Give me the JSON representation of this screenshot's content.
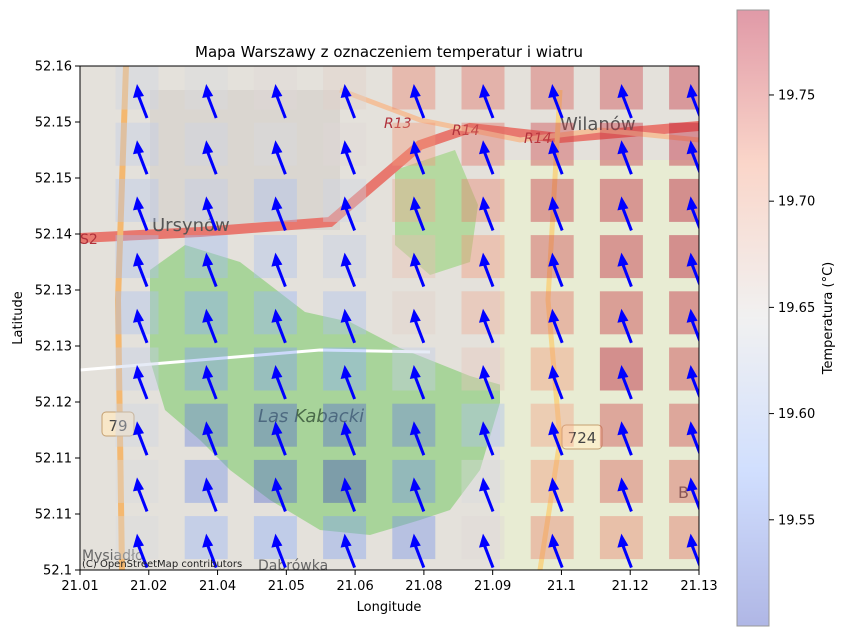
{
  "chart_data": {
    "type": "heatmap",
    "title": "Mapa Warszawy z oznaczeniem temperatur i wiatru",
    "xlabel": "Longitude",
    "ylabel": "Latitude",
    "x_ticks": [
      "21.01",
      "21.02",
      "21.04",
      "21.05",
      "21.06",
      "21.08",
      "21.09",
      "21.1",
      "21.12",
      "21.13"
    ],
    "y_ticks": [
      "52.16",
      "52.15",
      "52.15",
      "52.14",
      "52.13",
      "52.13",
      "52.12",
      "52.11",
      "52.11",
      "52.1"
    ],
    "xlim": [
      21.01,
      21.13
    ],
    "ylim": [
      52.1,
      52.16
    ],
    "colorbar": {
      "label": "Temperatura (°C)",
      "ticks": [
        "19.75",
        "19.70",
        "19.65",
        "19.60",
        "19.55"
      ],
      "range": [
        19.5,
        19.79
      ],
      "colormap": "coolwarm"
    },
    "grid": {
      "columns": 9,
      "rows": 9,
      "temperatures": [
        [
          19.63,
          19.64,
          19.65,
          19.66,
          19.73,
          19.74,
          19.75,
          19.76,
          19.77
        ],
        [
          19.62,
          19.63,
          19.64,
          19.65,
          19.72,
          19.74,
          19.76,
          19.77,
          19.78
        ],
        [
          19.61,
          19.62,
          19.6,
          19.63,
          19.7,
          19.73,
          19.77,
          19.78,
          19.79
        ],
        [
          19.6,
          19.59,
          19.6,
          19.62,
          19.68,
          19.72,
          19.76,
          19.78,
          19.79
        ],
        [
          19.6,
          19.57,
          19.58,
          19.6,
          19.66,
          19.7,
          19.74,
          19.77,
          19.78
        ],
        [
          19.62,
          19.56,
          19.56,
          19.57,
          19.62,
          19.67,
          19.72,
          19.79,
          19.77
        ],
        [
          19.63,
          19.54,
          19.52,
          19.52,
          19.54,
          19.6,
          19.71,
          19.76,
          19.76
        ],
        [
          19.64,
          19.55,
          19.52,
          19.5,
          19.55,
          19.64,
          19.72,
          19.75,
          19.75
        ],
        [
          19.64,
          19.58,
          19.57,
          19.56,
          19.55,
          19.65,
          19.73,
          19.73,
          19.74
        ]
      ]
    },
    "wind": {
      "direction": "north-north-west",
      "color": "#0000ff"
    },
    "basemap": {
      "attribution": "(C) OpenStreetMap contributors",
      "labels": [
        "Wilanów",
        "Ursynów",
        "Las Kabacki",
        "Mysiadło",
        "Dąbrówka",
        "R13",
        "R14",
        "R14",
        "S2",
        "79",
        "724",
        "B"
      ]
    }
  }
}
